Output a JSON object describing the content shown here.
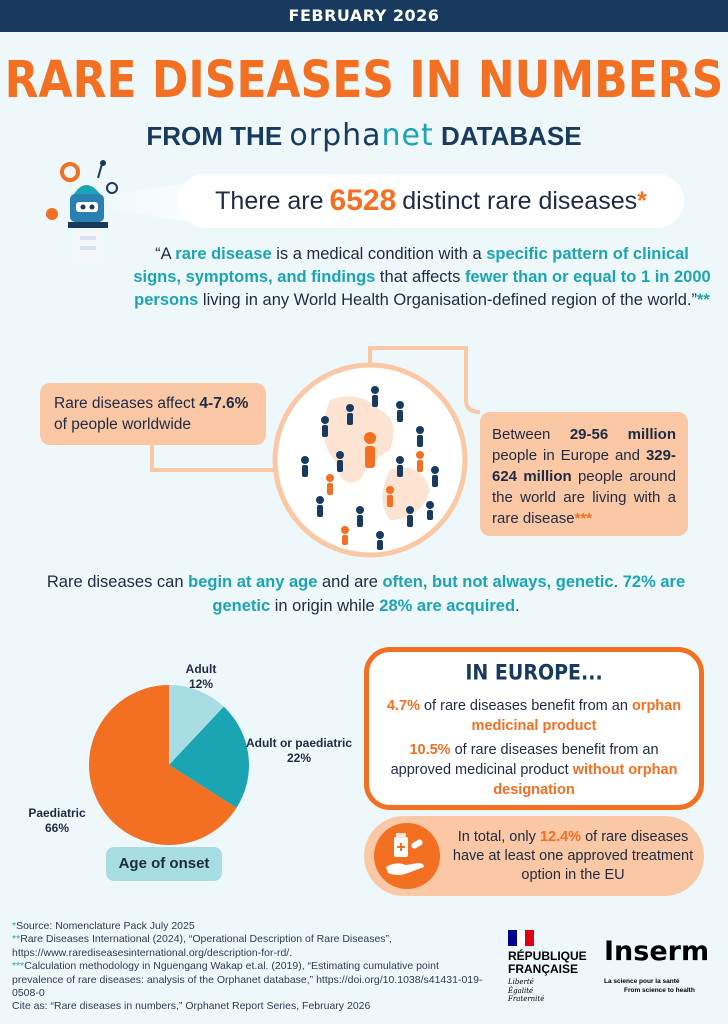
{
  "header": {
    "date": "FEBRUARY 2026"
  },
  "title": {
    "main": "RARE DISEASES IN NUMBERS",
    "sub_before": "FROM THE",
    "brand_a": "orpha",
    "brand_b": "net",
    "sub_after": "DATABASE"
  },
  "headline": {
    "before": "There are",
    "number": "6528",
    "after": "distinct rare diseases",
    "star": "*"
  },
  "definition": {
    "p1": "“A ",
    "h1": "rare disease",
    "p2": " is a medical condition with a ",
    "h2": "specific pattern of clinical signs, symptoms, and findings",
    "p3": " that affects ",
    "h3": "fewer than or equal to 1 in 2000 persons",
    "p4": " living in any World Health Organisation-defined region of the world.”",
    "stars": "**"
  },
  "worldwide": {
    "before": "Rare diseases affect ",
    "value": "4-7.6%",
    "after": " of people worldwide"
  },
  "population": {
    "p1": "Between ",
    "v1": "29-56 million",
    "p2": " people in Europe and ",
    "v2": "329-624 million",
    "p3": " people around the world are living with a rare disease",
    "stars": "***"
  },
  "age": {
    "p1": "Rare diseases can ",
    "h1": "begin at any age",
    "p2": " and are ",
    "h2": "often, but not always, genetic",
    "p3": ". ",
    "h3": "72% are genetic",
    "p4": " in origin while ",
    "h4": "28% are acquired",
    "p5": "."
  },
  "chart_data": {
    "type": "pie",
    "title": "Age of onset",
    "categories": [
      "Adult",
      "Adult or paediatric",
      "Paediatric"
    ],
    "values": [
      12,
      22,
      66
    ],
    "labels": [
      "12%",
      "22%",
      "66%"
    ],
    "colors": [
      "#a8dde4",
      "#1ba5b3",
      "#f36f21"
    ]
  },
  "europe": {
    "title": "IN EUROPE...",
    "a_value": "4.7%",
    "a_text": " of rare diseases benefit from an ",
    "a_highlight": "orphan medicinal product",
    "b_value": "10.5%",
    "b_text": " of rare diseases benefit from an approved medicinal product ",
    "b_highlight": "without orphan designation"
  },
  "total": {
    "before": "In total, only ",
    "value": "12.4%",
    "after": " of rare diseases have at least one approved treatment option in the EU"
  },
  "references": {
    "r1_mark": "*",
    "r1": "Source: Nomenclature Pack July 2025",
    "r2_mark": "**",
    "r2": "Rare Diseases International (2024), “Operational Description of Rare Diseases”, https://www.rarediseasesinternational.org/description-for-rd/.",
    "r3_mark": "***",
    "r3": "Calculation methodology in Nguengang Wakap et.al. (2019), “Estimating cumulative point prevalence of rare diseases: analysis of the Orphanet database,” https://doi.org/10.1038/s41431-019-0508-0",
    "r4": "Cite as: “Rare diseases in numbers,” Orphanet Report Series, February 2026"
  },
  "logos": {
    "republique_line1": "RÉPUBLIQUE",
    "republique_line2": "FRANÇAISE",
    "motto": [
      "Liberté",
      "Égalité",
      "Fraternité"
    ],
    "inserm": "Inserm",
    "inserm_tag1": "La science pour la santé",
    "inserm_tag2": "From science to health"
  },
  "colors": {
    "navy": "#173a5e",
    "orange": "#f36f21",
    "teal": "#1ba5b3",
    "peach": "#fbc8a5",
    "light_teal": "#a8dde4",
    "background": "#eef7fa"
  }
}
